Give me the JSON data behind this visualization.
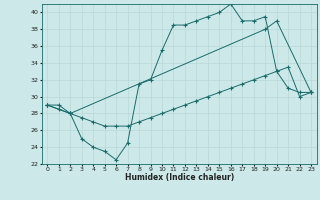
{
  "xlabel": "Humidex (Indice chaleur)",
  "bg_color": "#cce8e8",
  "line_color": "#1a6b6b",
  "grid_color": "#b8d8d8",
  "xlim": [
    -0.5,
    23.5
  ],
  "ylim": [
    22,
    41
  ],
  "xticks": [
    0,
    1,
    2,
    3,
    4,
    5,
    6,
    7,
    8,
    9,
    10,
    11,
    12,
    13,
    14,
    15,
    16,
    17,
    18,
    19,
    20,
    21,
    22,
    23
  ],
  "yticks": [
    22,
    24,
    26,
    28,
    30,
    32,
    34,
    36,
    38,
    40
  ],
  "line1_x": [
    0,
    1,
    2,
    3,
    4,
    5,
    6,
    7,
    8,
    9,
    10,
    11,
    12,
    13,
    14,
    15,
    16,
    17,
    18,
    19,
    20,
    21,
    22,
    23
  ],
  "line1_y": [
    29.0,
    29.0,
    28.0,
    25.0,
    24.0,
    23.5,
    22.5,
    24.5,
    31.5,
    32.0,
    35.5,
    38.5,
    38.5,
    39.0,
    39.5,
    40.0,
    41.0,
    39.0,
    39.0,
    39.5,
    33.0,
    31.0,
    30.5,
    30.5
  ],
  "line2_x": [
    0,
    2,
    19,
    20,
    23
  ],
  "line2_y": [
    29.0,
    28.0,
    38.0,
    39.0,
    30.5
  ],
  "line3_x": [
    0,
    1,
    2,
    3,
    4,
    5,
    6,
    7,
    8,
    9,
    10,
    11,
    12,
    13,
    14,
    15,
    16,
    17,
    18,
    19,
    20,
    21,
    22,
    23
  ],
  "line3_y": [
    29.0,
    28.5,
    28.0,
    27.5,
    27.0,
    26.5,
    26.5,
    26.5,
    27.0,
    27.5,
    28.0,
    28.5,
    29.0,
    29.5,
    30.0,
    30.5,
    31.0,
    31.5,
    32.0,
    32.5,
    33.0,
    33.5,
    30.0,
    30.5
  ]
}
